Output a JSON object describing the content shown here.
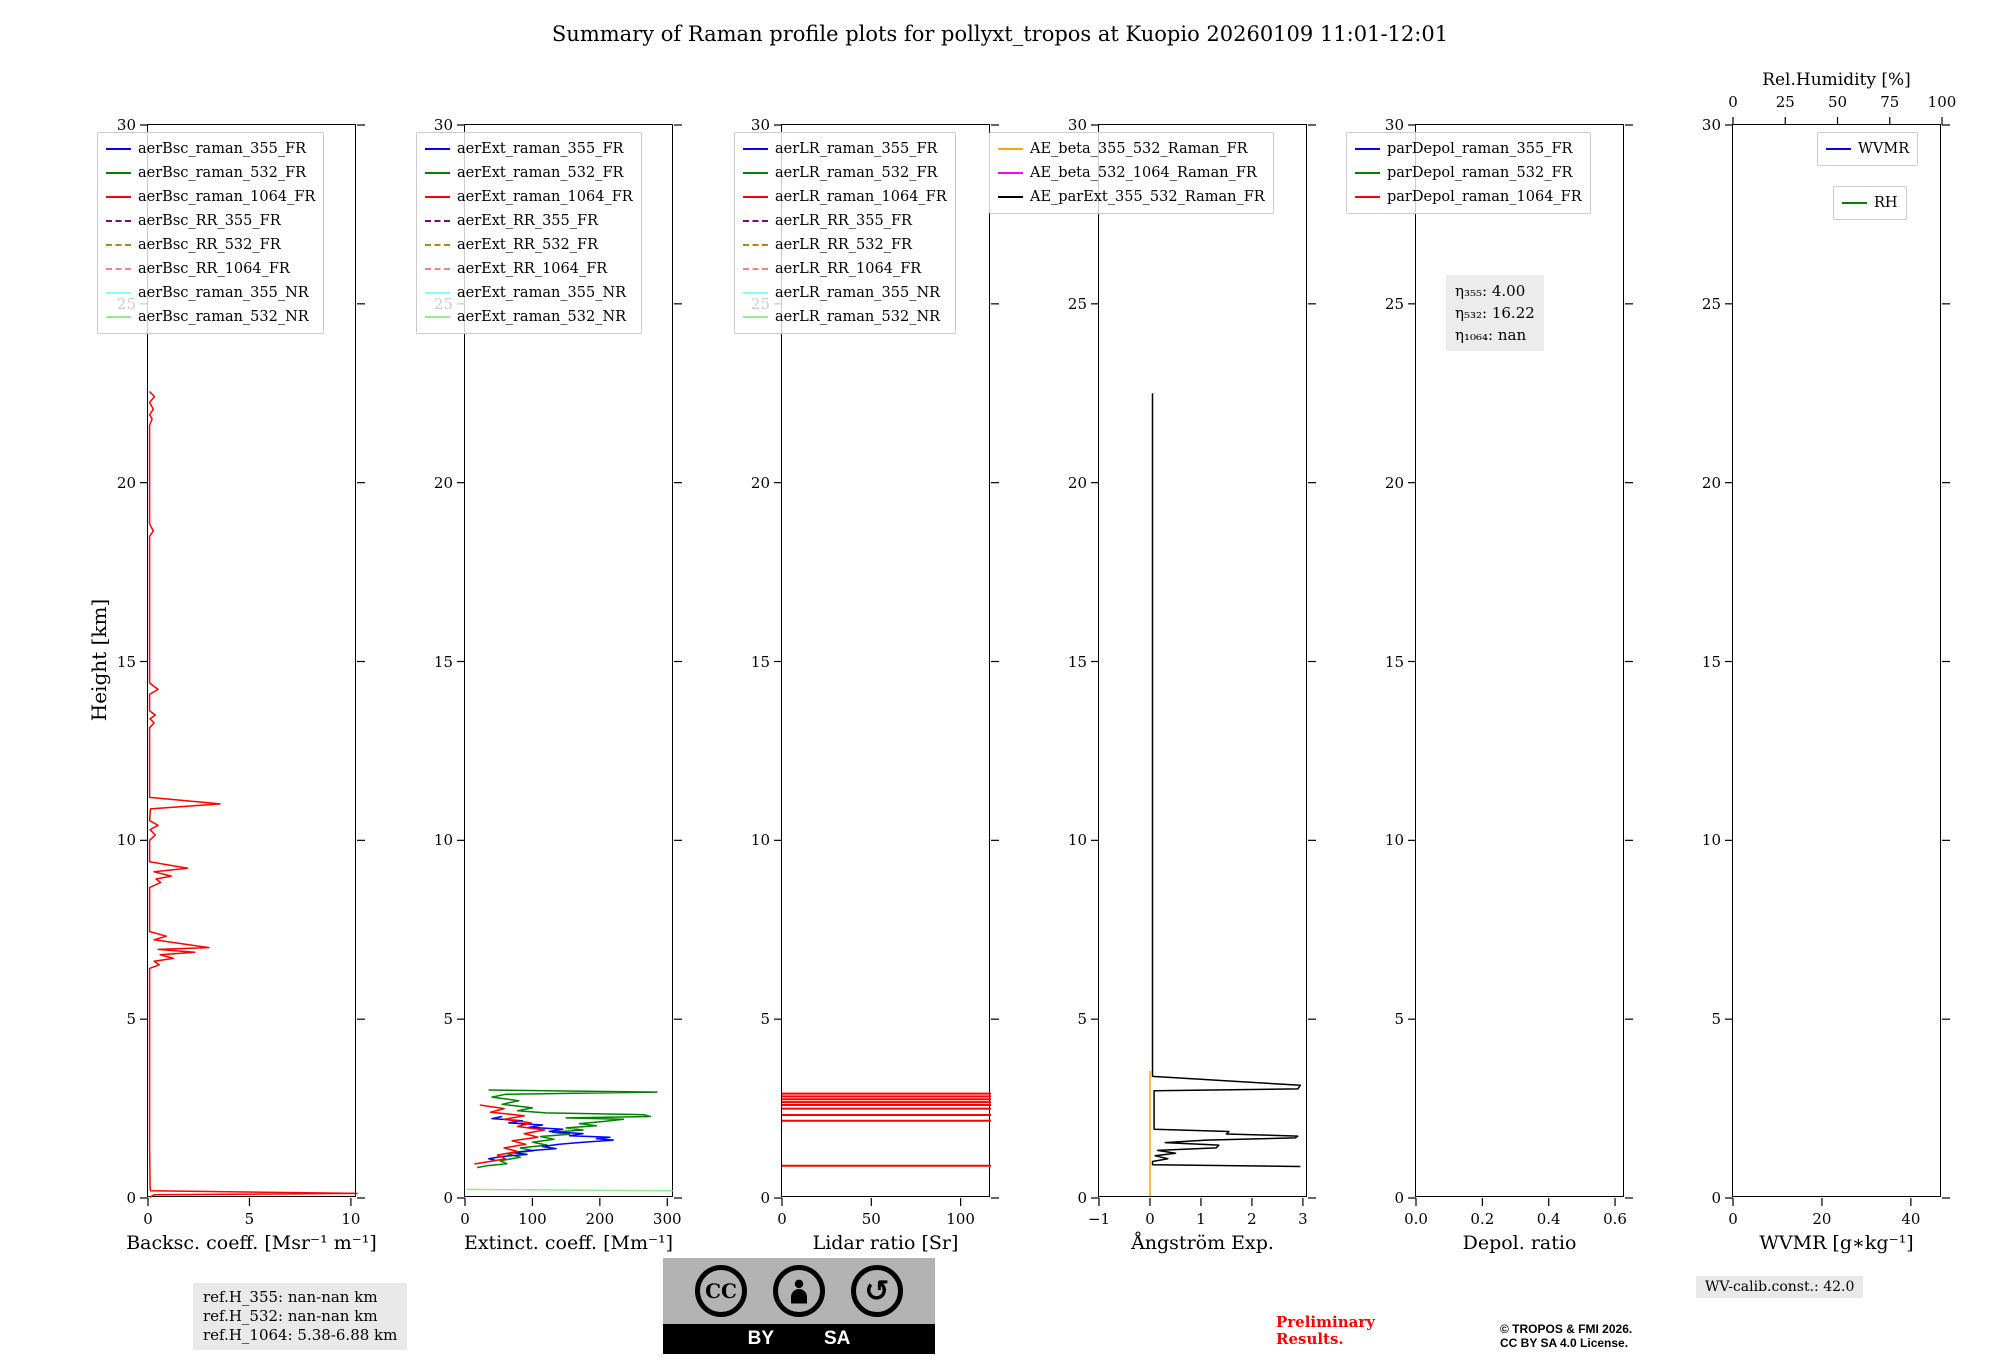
{
  "title": "Summary of Raman profile plots for pollyxt_tropos at Kuopio 20260109 11:01-12:01",
  "ylabel": "Height [km]",
  "yaxis": {
    "lim": [
      0,
      30
    ],
    "ticks": [
      0,
      5,
      10,
      15,
      20,
      25,
      30
    ],
    "labels": [
      "0",
      "5",
      "10",
      "15",
      "20",
      "25",
      "30"
    ]
  },
  "footer": {
    "ref_lines": [
      "ref.H_355: nan-nan km",
      "ref.H_532: nan-nan km",
      "ref.H_1064: 5.38-6.88 km"
    ],
    "preliminary_line1": "Preliminary",
    "preliminary_line2": "Results.",
    "copyright_line1": "© TROPOS & FMI 2026.",
    "copyright_line2": "CC BY SA 4.0 License.",
    "wv_calib": "WV-calib.const.: 42.0",
    "cc": {
      "cc_label": "CC",
      "by_label": "BY",
      "sa_label": "SA",
      "sa_arrow": "↺"
    }
  },
  "chart_data": [
    {
      "type": "line",
      "xlabel": "Backsc. coeff. [Msr⁻¹ m⁻¹]",
      "xlim": [
        0,
        10.3
      ],
      "ylim": [
        0,
        30
      ],
      "xticks": [
        0,
        5,
        10
      ],
      "xtick_labels": [
        "0",
        "5",
        "10"
      ],
      "legend": [
        {
          "label": "aerBsc_raman_355_FR",
          "color": "#0000ff",
          "dash": "solid"
        },
        {
          "label": "aerBsc_raman_532_FR",
          "color": "#008000",
          "dash": "solid"
        },
        {
          "label": "aerBsc_raman_1064_FR",
          "color": "#ff0000",
          "dash": "solid"
        },
        {
          "label": "aerBsc_RR_355_FR",
          "color": "#800080",
          "dash": "dashed"
        },
        {
          "label": "aerBsc_RR_532_FR",
          "color": "#b8860b",
          "dash": "dashed"
        },
        {
          "label": "aerBsc_RR_1064_FR",
          "color": "#ff8080",
          "dash": "dashed"
        },
        {
          "label": "aerBsc_raman_355_NR",
          "color": "#7fffff",
          "dash": "solid"
        },
        {
          "label": "aerBsc_raman_532_NR",
          "color": "#90ee90",
          "dash": "solid"
        }
      ],
      "series": [
        {
          "name": "aerBsc_raman_1064_FR",
          "color": "#ff0000",
          "width": 1.5,
          "points": [
            [
              0.08,
              22.55
            ],
            [
              0.32,
              22.4
            ],
            [
              0.08,
              22.25
            ],
            [
              0.26,
              22.05
            ],
            [
              0.08,
              21.9
            ],
            [
              0.2,
              21.78
            ],
            [
              0.08,
              21.6
            ],
            [
              0.08,
              18.85
            ],
            [
              0.26,
              18.65
            ],
            [
              0.08,
              18.5
            ],
            [
              0.08,
              14.4
            ],
            [
              0.5,
              14.22
            ],
            [
              0.08,
              14.08
            ],
            [
              0.08,
              13.62
            ],
            [
              0.36,
              13.5
            ],
            [
              0.1,
              13.4
            ],
            [
              0.3,
              13.28
            ],
            [
              0.08,
              13.15
            ],
            [
              0.08,
              11.2
            ],
            [
              3.55,
              11.02
            ],
            [
              0.12,
              10.88
            ],
            [
              0.08,
              10.55
            ],
            [
              0.5,
              10.42
            ],
            [
              0.1,
              10.3
            ],
            [
              0.36,
              10.15
            ],
            [
              0.08,
              10.0
            ],
            [
              0.08,
              9.4
            ],
            [
              1.95,
              9.22
            ],
            [
              0.3,
              9.12
            ],
            [
              1.15,
              9.0
            ],
            [
              0.4,
              8.92
            ],
            [
              0.62,
              8.82
            ],
            [
              0.08,
              8.68
            ],
            [
              0.08,
              7.45
            ],
            [
              0.9,
              7.32
            ],
            [
              0.3,
              7.22
            ],
            [
              1.5,
              7.12
            ],
            [
              3.0,
              7.0
            ],
            [
              0.5,
              6.95
            ],
            [
              2.3,
              6.87
            ],
            [
              0.6,
              6.8
            ],
            [
              1.25,
              6.7
            ],
            [
              0.3,
              6.62
            ],
            [
              0.55,
              6.52
            ],
            [
              0.08,
              6.42
            ],
            [
              0.08,
              4.0
            ],
            [
              0.08,
              1.5
            ],
            [
              0.1,
              0.4
            ],
            [
              0.12,
              0.2
            ],
            [
              10.3,
              0.13
            ],
            [
              0.3,
              0.09
            ],
            [
              0.08,
              0.02
            ]
          ]
        }
      ]
    },
    {
      "type": "line",
      "xlabel": "Extinct. coeff. [Mm⁻¹]",
      "xlim": [
        0,
        310
      ],
      "ylim": [
        0,
        30
      ],
      "xticks": [
        0,
        100,
        200,
        300
      ],
      "xtick_labels": [
        "0",
        "100",
        "200",
        "300"
      ],
      "legend": [
        {
          "label": "aerExt_raman_355_FR",
          "color": "#0000ff",
          "dash": "solid"
        },
        {
          "label": "aerExt_raman_532_FR",
          "color": "#008000",
          "dash": "solid"
        },
        {
          "label": "aerExt_raman_1064_FR",
          "color": "#ff0000",
          "dash": "solid"
        },
        {
          "label": "aerExt_RR_355_FR",
          "color": "#800080",
          "dash": "dashed"
        },
        {
          "label": "aerExt_RR_532_FR",
          "color": "#b8860b",
          "dash": "dashed"
        },
        {
          "label": "aerExt_RR_1064_FR",
          "color": "#ff8080",
          "dash": "dashed"
        },
        {
          "label": "aerExt_raman_355_NR",
          "color": "#7fffff",
          "dash": "solid"
        },
        {
          "label": "aerExt_raman_532_NR",
          "color": "#90ee90",
          "dash": "solid"
        }
      ],
      "series": [
        {
          "name": "aerExt_raman_532_FR",
          "color": "#008000",
          "width": 1.5,
          "points": [
            [
              35,
              3.02
            ],
            [
              285,
              2.96
            ],
            [
              60,
              2.9
            ],
            [
              40,
              2.82
            ],
            [
              80,
              2.72
            ],
            [
              55,
              2.62
            ],
            [
              100,
              2.52
            ],
            [
              78,
              2.44
            ],
            [
              120,
              2.38
            ],
            [
              265,
              2.33
            ],
            [
              275,
              2.28
            ],
            [
              150,
              2.24
            ],
            [
              235,
              2.2
            ],
            [
              205,
              2.14
            ],
            [
              170,
              2.08
            ],
            [
              195,
              2.02
            ],
            [
              150,
              1.96
            ],
            [
              175,
              1.9
            ],
            [
              130,
              1.84
            ],
            [
              155,
              1.78
            ],
            [
              112,
              1.72
            ],
            [
              132,
              1.64
            ],
            [
              100,
              1.56
            ],
            [
              122,
              1.48
            ],
            [
              82,
              1.4
            ],
            [
              102,
              1.32
            ],
            [
              62,
              1.24
            ],
            [
              82,
              1.14
            ],
            [
              52,
              1.04
            ],
            [
              62,
              0.96
            ],
            [
              32,
              0.9
            ],
            [
              18,
              0.85
            ]
          ]
        },
        {
          "name": "aerExt_raman_355_FR",
          "color": "#0000ff",
          "width": 1.5,
          "points": [
            [
              55,
              2.28
            ],
            [
              40,
              2.22
            ],
            [
              85,
              2.16
            ],
            [
              65,
              2.1
            ],
            [
              115,
              2.04
            ],
            [
              95,
              1.98
            ],
            [
              145,
              1.92
            ],
            [
              125,
              1.86
            ],
            [
              175,
              1.8
            ],
            [
              155,
              1.74
            ],
            [
              215,
              1.7
            ],
            [
              195,
              1.66
            ],
            [
              220,
              1.62
            ],
            [
              175,
              1.56
            ],
            [
              140,
              1.5
            ],
            [
              115,
              1.44
            ],
            [
              135,
              1.38
            ],
            [
              95,
              1.32
            ],
            [
              70,
              1.27
            ],
            [
              92,
              1.22
            ],
            [
              55,
              1.16
            ],
            [
              35,
              1.1
            ],
            [
              45,
              1.05
            ]
          ]
        },
        {
          "name": "aerExt_raman_1064_FR",
          "color": "#ff0000",
          "width": 1.5,
          "points": [
            [
              22,
              2.6
            ],
            [
              58,
              2.5
            ],
            [
              38,
              2.4
            ],
            [
              88,
              2.3
            ],
            [
              58,
              2.2
            ],
            [
              98,
              2.1
            ],
            [
              78,
              2.0
            ],
            [
              118,
              1.9
            ],
            [
              88,
              1.8
            ],
            [
              108,
              1.7
            ],
            [
              70,
              1.6
            ],
            [
              90,
              1.5
            ],
            [
              58,
              1.4
            ],
            [
              78,
              1.3
            ],
            [
              48,
              1.2
            ],
            [
              60,
              1.1
            ],
            [
              30,
              1.0
            ],
            [
              14,
              0.95
            ]
          ]
        },
        {
          "name": "aerExt_raman_532_NR",
          "color": "#90ee90",
          "width": 1.5,
          "points": [
            [
              2,
              0.24
            ],
            [
              308,
              0.2
            ]
          ]
        }
      ]
    },
    {
      "type": "line",
      "xlabel": "Lidar ratio [Sr]",
      "xlim": [
        0,
        117
      ],
      "ylim": [
        0,
        30
      ],
      "xticks": [
        0,
        50,
        100
      ],
      "xtick_labels": [
        "0",
        "50",
        "100"
      ],
      "legend": [
        {
          "label": "aerLR_raman_355_FR",
          "color": "#0000ff",
          "dash": "solid"
        },
        {
          "label": "aerLR_raman_532_FR",
          "color": "#008000",
          "dash": "solid"
        },
        {
          "label": "aerLR_raman_1064_FR",
          "color": "#ff0000",
          "dash": "solid"
        },
        {
          "label": "aerLR_RR_355_FR",
          "color": "#800080",
          "dash": "dashed"
        },
        {
          "label": "aerLR_RR_532_FR",
          "color": "#b8860b",
          "dash": "dashed"
        },
        {
          "label": "aerLR_RR_1064_FR",
          "color": "#ff8080",
          "dash": "dashed"
        },
        {
          "label": "aerLR_raman_355_NR",
          "color": "#7fffff",
          "dash": "solid"
        },
        {
          "label": "aerLR_raman_532_NR",
          "color": "#90ee90",
          "dash": "solid"
        }
      ],
      "series": [
        {
          "name": "aerLR_raman_1064_FR",
          "color": "#ff0000",
          "width": 2,
          "points": [
            [
              0,
              2.92
            ],
            [
              117,
              2.92
            ],
            null,
            [
              0,
              2.84
            ],
            [
              117,
              2.84
            ],
            null,
            [
              0,
              2.76
            ],
            [
              117,
              2.76
            ],
            null,
            [
              0,
              2.68
            ],
            [
              117,
              2.68
            ],
            null,
            [
              0,
              2.6
            ],
            [
              117,
              2.6
            ],
            null,
            [
              0,
              2.5
            ],
            [
              117,
              2.5
            ],
            null,
            [
              0,
              2.32
            ],
            [
              117,
              2.32
            ],
            null,
            [
              0,
              2.16
            ],
            [
              117,
              2.16
            ],
            null,
            [
              0,
              0.9
            ],
            [
              117,
              0.9
            ]
          ]
        }
      ]
    },
    {
      "type": "line",
      "xlabel": "Ångström Exp.",
      "xlim": [
        -1,
        3.1
      ],
      "ylim": [
        0,
        30
      ],
      "xticks": [
        -1,
        0,
        1,
        2,
        3
      ],
      "xtick_labels": [
        "−1",
        "0",
        "1",
        "2",
        "3"
      ],
      "legend": [
        {
          "label": "AE_beta_355_532_Raman_FR",
          "color": "#ffa500",
          "dash": "solid"
        },
        {
          "label": "AE_beta_532_1064_Raman_FR",
          "color": "#ff00ff",
          "dash": "solid"
        },
        {
          "label": "AE_parExt_355_532_Raman_FR",
          "color": "#000000",
          "dash": "solid"
        }
      ],
      "series": [
        {
          "name": "AE_beta_355_532_Raman_FR",
          "color": "#ffa500",
          "width": 1.5,
          "points": [
            [
              0,
              3.55
            ],
            [
              0,
              0.05
            ]
          ]
        },
        {
          "name": "AE_parExt_355_532_Raman_FR",
          "color": "#000000",
          "width": 1.5,
          "points": [
            [
              0.05,
              22.5
            ],
            [
              0.05,
              3.4
            ],
            [
              2.95,
              3.15
            ],
            [
              2.9,
              3.05
            ],
            [
              0.08,
              3.0
            ],
            [
              0.08,
              1.92
            ],
            [
              1.55,
              1.86
            ],
            [
              1.5,
              1.79
            ],
            [
              2.9,
              1.73
            ],
            [
              2.85,
              1.68
            ],
            [
              1.1,
              1.62
            ],
            [
              0.3,
              1.55
            ],
            [
              1.35,
              1.48
            ],
            [
              1.3,
              1.4
            ],
            [
              0.15,
              1.33
            ],
            [
              0.5,
              1.25
            ],
            [
              0.1,
              1.18
            ],
            [
              0.35,
              1.1
            ],
            [
              0.05,
              1.02
            ],
            [
              0.05,
              0.93
            ],
            [
              2.95,
              0.88
            ]
          ]
        }
      ]
    },
    {
      "type": "line",
      "xlabel": "Depol. ratio",
      "xlim": [
        0,
        0.63
      ],
      "ylim": [
        0,
        30
      ],
      "xticks": [
        0,
        0.2,
        0.4,
        0.6
      ],
      "xtick_labels": [
        "0.0",
        "0.2",
        "0.4",
        "0.6"
      ],
      "legend": [
        {
          "label": "parDepol_raman_355_FR",
          "color": "#0000ff",
          "dash": "solid"
        },
        {
          "label": "parDepol_raman_532_FR",
          "color": "#008000",
          "dash": "solid"
        },
        {
          "label": "parDepol_raman_1064_FR",
          "color": "#ff0000",
          "dash": "solid"
        }
      ],
      "annotation": {
        "lines": [
          "η₃₅₅: 4.00",
          "η₅₃₂: 16.22",
          "η₁₀₆₄: nan"
        ]
      },
      "series": []
    },
    {
      "type": "line",
      "xlabel": "WVMR [g∗kg⁻¹]",
      "xlim": [
        0,
        47
      ],
      "ylim": [
        0,
        30
      ],
      "xticks": [
        0,
        20,
        40
      ],
      "xtick_labels": [
        "0",
        "20",
        "40"
      ],
      "top_axis": {
        "label": "Rel.Humidity [%]",
        "lim": [
          0,
          100
        ],
        "ticks": [
          0,
          25,
          50,
          75,
          100
        ],
        "labels": [
          "0",
          "25",
          "50",
          "75",
          "100"
        ]
      },
      "legend": [
        {
          "label": "WVMR",
          "color": "#0000ff",
          "dash": "solid"
        },
        {
          "label": "RH",
          "color": "#008000",
          "dash": "solid"
        }
      ],
      "series": []
    }
  ]
}
